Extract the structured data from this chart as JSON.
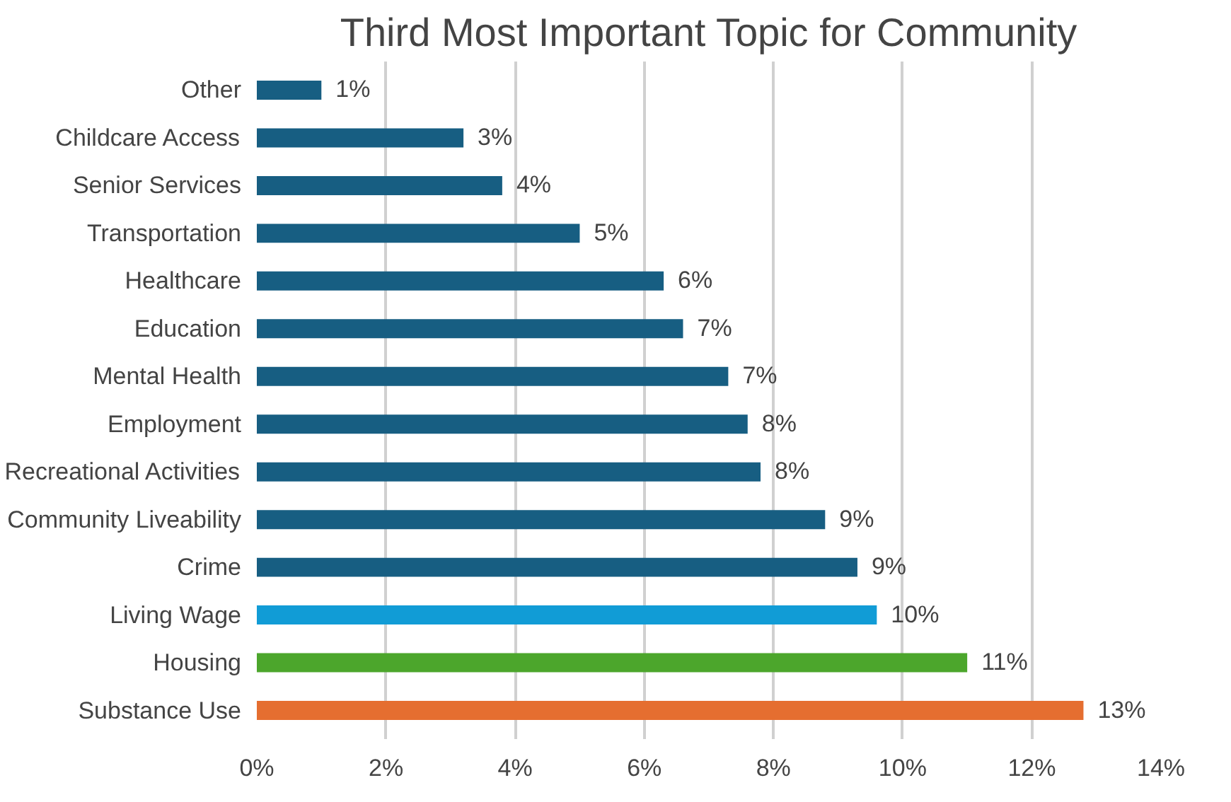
{
  "chart_data": {
    "type": "bar",
    "orientation": "horizontal",
    "title": "Third Most Important Topic for Community",
    "categories": [
      "Other",
      "Childcare Access",
      "Senior Services",
      "Transportation",
      "Healthcare",
      "Education",
      "Mental Health",
      "Employment",
      "Recreational Activities",
      "Community Liveability",
      "Crime",
      "Living Wage",
      "Housing",
      "Substance Use"
    ],
    "values": [
      1.0,
      3.2,
      3.8,
      5.0,
      6.3,
      6.6,
      7.3,
      7.6,
      7.8,
      8.8,
      9.3,
      9.6,
      11.0,
      12.8
    ],
    "value_labels": [
      "1%",
      "3%",
      "4%",
      "5%",
      "6%",
      "7%",
      "7%",
      "8%",
      "8%",
      "9%",
      "9%",
      "10%",
      "11%",
      "13%"
    ],
    "colors": [
      "#175e82",
      "#175e82",
      "#175e82",
      "#175e82",
      "#175e82",
      "#175e82",
      "#175e82",
      "#175e82",
      "#175e82",
      "#175e82",
      "#175e82",
      "#119cd6",
      "#4ca62c",
      "#e56e30"
    ],
    "xlim": [
      0,
      14
    ],
    "xticks": [
      {
        "value": 0,
        "label": "0%"
      },
      {
        "value": 2,
        "label": "2%"
      },
      {
        "value": 4,
        "label": "4%"
      },
      {
        "value": 6,
        "label": "6%"
      },
      {
        "value": 8,
        "label": "8%"
      },
      {
        "value": 10,
        "label": "10%"
      },
      {
        "value": 12,
        "label": "12%"
      },
      {
        "value": 14,
        "label": "14%"
      }
    ],
    "grid": "x"
  }
}
